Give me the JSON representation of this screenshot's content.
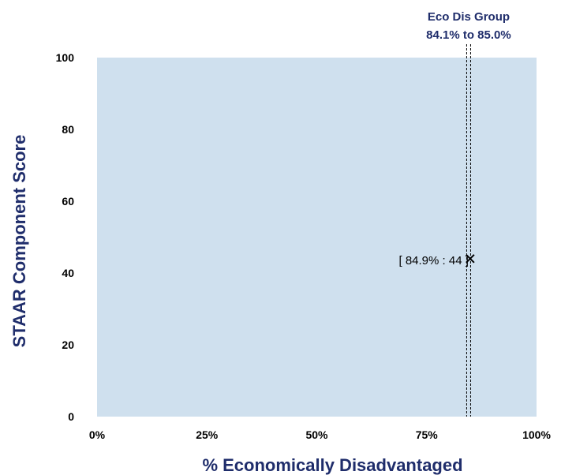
{
  "chart_data": {
    "type": "scatter",
    "xlabel": "% Economically Disadvantaged",
    "ylabel": "STAAR Component Score",
    "xlim": [
      0,
      100
    ],
    "ylim": [
      0,
      100
    ],
    "x_ticks": [
      {
        "value": 0,
        "label": "0%"
      },
      {
        "value": 25,
        "label": "25%"
      },
      {
        "value": 50,
        "label": "50%"
      },
      {
        "value": 75,
        "label": "75%"
      },
      {
        "value": 100,
        "label": "100%"
      }
    ],
    "y_ticks": [
      {
        "value": 0,
        "label": "0"
      },
      {
        "value": 20,
        "label": "20"
      },
      {
        "value": 40,
        "label": "40"
      },
      {
        "value": 60,
        "label": "60"
      },
      {
        "value": 80,
        "label": "80"
      },
      {
        "value": 100,
        "label": "100"
      }
    ],
    "group_band": {
      "title": "Eco Dis Group",
      "range_label": "84.1% to 85.0%",
      "x_start": 84.1,
      "x_end": 85.0
    },
    "points": [
      {
        "x": 84.9,
        "y": 44,
        "label": "[ 84.9% : 44 ]",
        "marker": "x"
      }
    ],
    "grid": false
  },
  "colors": {
    "plot_background": "#cfe0ee",
    "axis_title": "#1f2d6b",
    "tick_text": "#000000",
    "band_line": "#000000",
    "marker": "#000000"
  }
}
